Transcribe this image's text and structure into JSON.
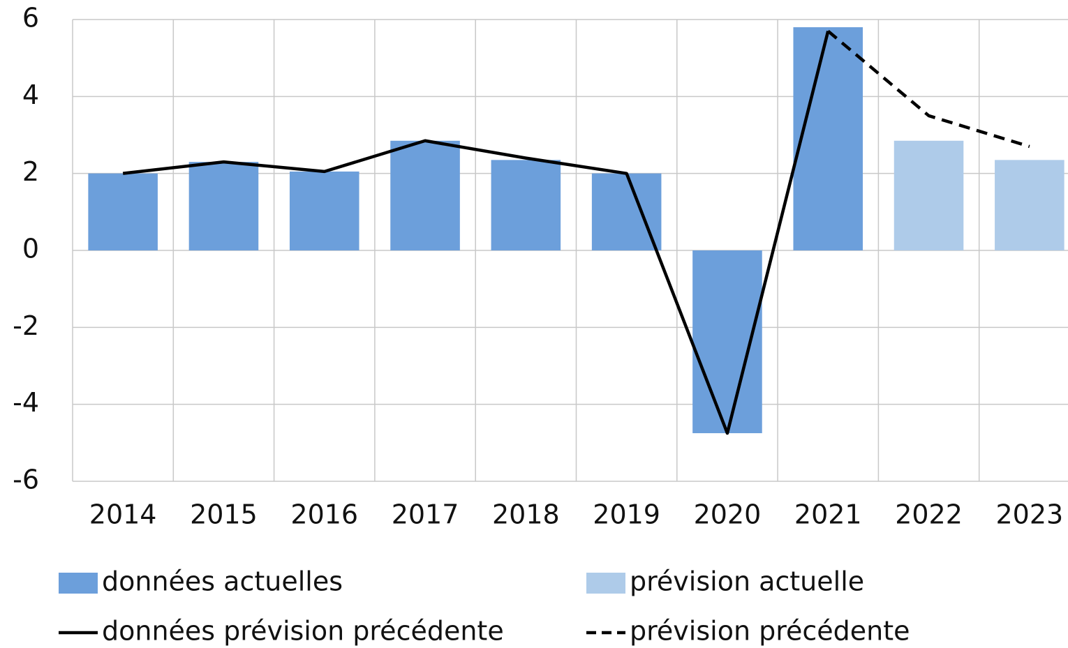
{
  "chart_data": {
    "type": "bar-line",
    "categories": [
      "2014",
      "2015",
      "2016",
      "2017",
      "2018",
      "2019",
      "2020",
      "2021",
      "2022",
      "2023"
    ],
    "series": [
      {
        "name": "données actuelles",
        "type": "bar",
        "color": "#6c9fdb",
        "values": [
          2.0,
          2.3,
          2.05,
          2.85,
          2.35,
          2.0,
          -4.75,
          5.8,
          null,
          null
        ]
      },
      {
        "name": "prévision actuelle",
        "type": "bar",
        "color": "#aecbe9",
        "values": [
          null,
          null,
          null,
          null,
          null,
          null,
          null,
          null,
          2.85,
          2.35
        ]
      },
      {
        "name": "données prévision précédente",
        "type": "line",
        "dash": false,
        "color": "#000000",
        "values": [
          2.0,
          2.3,
          2.05,
          2.85,
          2.4,
          2.0,
          -4.75,
          5.7,
          null,
          null
        ]
      },
      {
        "name": "prévision précédente",
        "type": "line",
        "dash": true,
        "color": "#000000",
        "values": [
          null,
          null,
          null,
          null,
          null,
          null,
          null,
          5.7,
          3.5,
          2.7
        ]
      }
    ],
    "ylim": [
      -6,
      6
    ],
    "yticks": [
      -6,
      -4,
      -2,
      0,
      2,
      4,
      6
    ],
    "grid": true
  }
}
